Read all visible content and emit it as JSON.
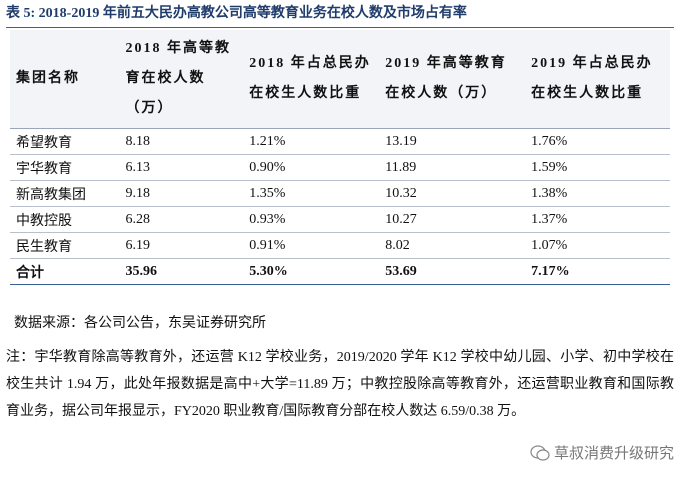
{
  "header": {
    "title": "表 5: 2018-2019 年前五大民办高教公司高等教育业务在校人数及市场占有率"
  },
  "table": {
    "columns": [
      "集团名称",
      "2018 年高等教育在校人数（万）",
      "2018 年占总民办在校生人数比重",
      "2019 年高等教育在校人数（万）",
      "2019 年占总民办在校生人数比重"
    ],
    "rows": [
      [
        "希望教育",
        "8.18",
        "1.21%",
        "13.19",
        "1.76%"
      ],
      [
        "宇华教育",
        "6.13",
        "0.90%",
        "11.89",
        "1.59%"
      ],
      [
        "新高教集团",
        "9.18",
        "1.35%",
        "10.32",
        "1.38%"
      ],
      [
        "中教控股",
        "6.28",
        "0.93%",
        "10.27",
        "1.37%"
      ],
      [
        "民生教育",
        "6.19",
        "0.91%",
        "8.02",
        "1.07%"
      ]
    ],
    "total": [
      "合计",
      "35.96",
      "5.30%",
      "53.69",
      "7.17%"
    ]
  },
  "source": "数据来源：各公司公告，东吴证券研究所",
  "note": "注：宇华教育除高等教育外，还运营 K12 学校业务，2019/2020 学年 K12 学校中幼儿园、小学、初中学校在校生共计 1.94 万，此处年报数据是高中+大学=11.89 万；中教控股除高等教育外，还运营职业教育和国际教育业务，据公司年报显示，FY2020 职业教育/国际教育分部在校人数达 6.59/0.38 万。",
  "watermark": "草叔消费升级研究"
}
